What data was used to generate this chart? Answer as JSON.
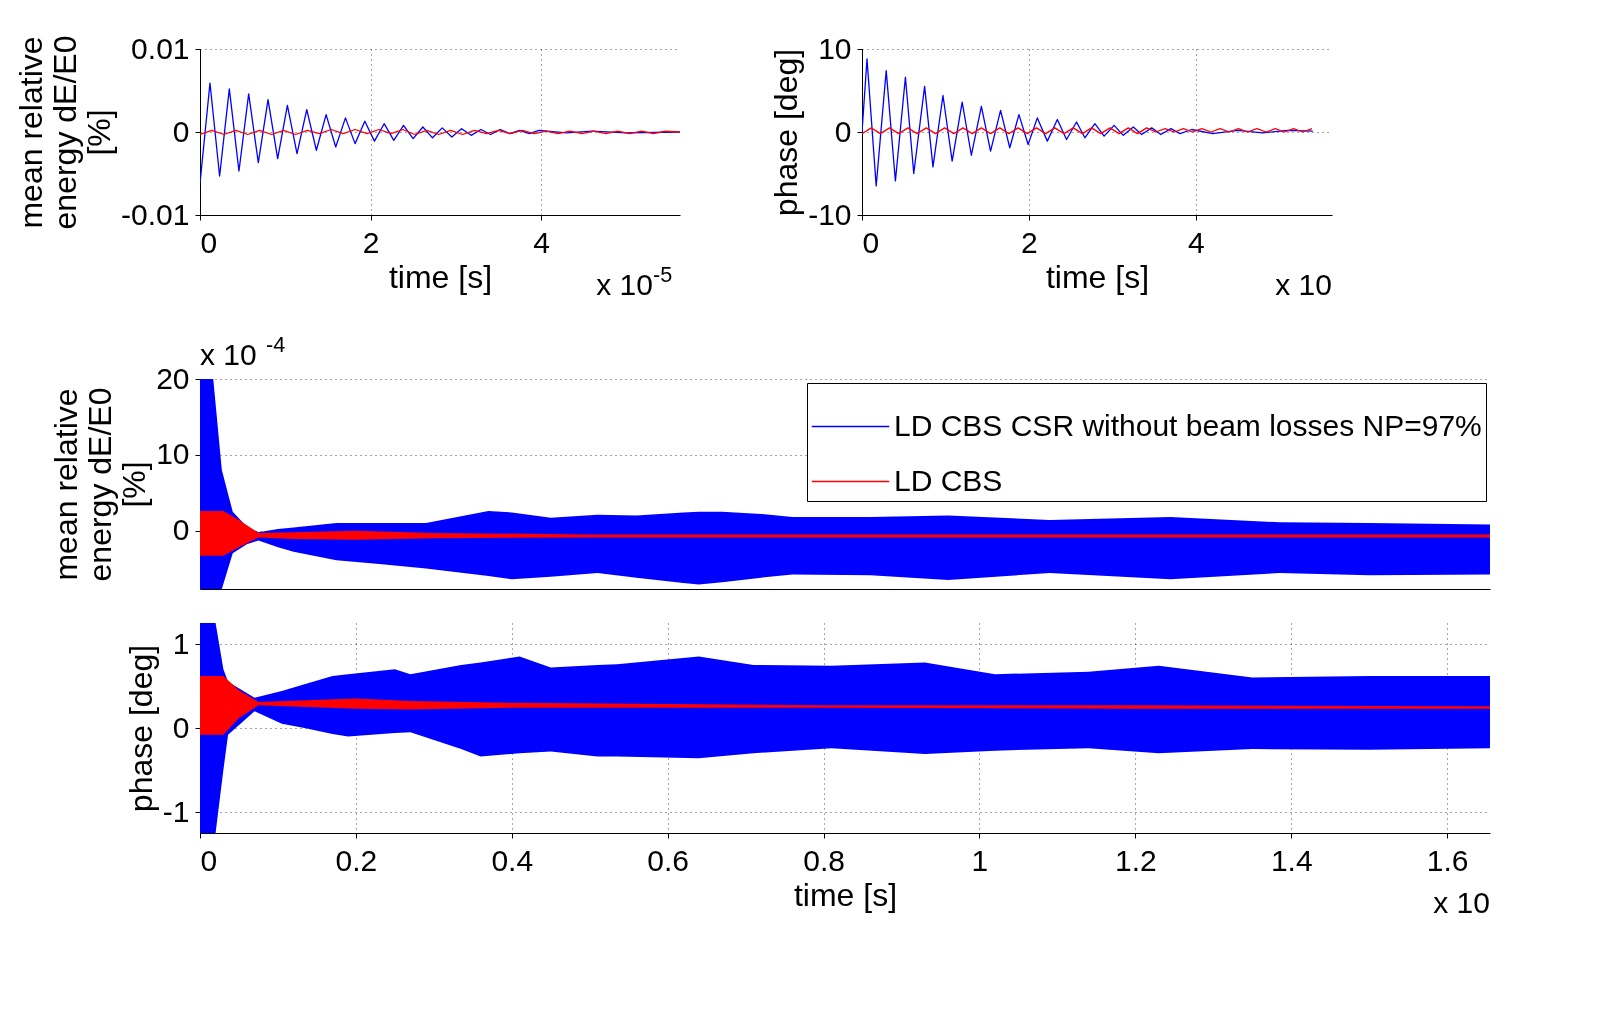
{
  "chart_data": [
    {
      "type": "line",
      "xlabel": "time [s]",
      "ylabel": "mean relative energy dE/E0 [%]",
      "xlim": [
        0,
        5.63
      ],
      "ylim": [
        -0.01,
        0.01
      ],
      "xticks": [
        0,
        2,
        4
      ],
      "yticks": [
        -0.01,
        0,
        0.01
      ],
      "grid": true,
      "annotations": [
        "x 10$^{-5}$"
      ],
      "series": [
        {
          "color": "#0000ff",
          "x": [
            0,
            0.117,
            0.23,
            0.344,
            0.457,
            0.571,
            0.684,
            0.798,
            0.911,
            1.025,
            1.138,
            1.252,
            1.365,
            1.479,
            1.592,
            1.706,
            1.819,
            1.933,
            2.046,
            2.16,
            2.273,
            2.387,
            2.5,
            2.614,
            2.727,
            2.841,
            2.954,
            3.068,
            3.181,
            3.295,
            3.408,
            3.522,
            3.635,
            3.749,
            3.862,
            3.976,
            4.3,
            4.6,
            5,
            5.63
          ],
          "values": [
            -0.0062,
            0.0059,
            -0.0053,
            0.0052,
            -0.0047,
            0.0046,
            -0.0037,
            0.0039,
            -0.0032,
            0.0032,
            -0.0026,
            0.0027,
            -0.0022,
            0.0021,
            -0.0018,
            0.0017,
            -0.0014,
            0.0013,
            -0.0011,
            0.001,
            -0.001,
            0.0008,
            -0.0008,
            0.0006,
            -0.0007,
            0.0005,
            -0.0006,
            0.0004,
            -0.0004,
            0.0003,
            -0.0003,
            0.0003,
            -0.0002,
            0.0002,
            -0.0002,
            0.0002,
            -0.0001,
            0.0001,
            -0.0001,
            0
          ]
        },
        {
          "color": "#ff0000",
          "x": [
            0,
            0.14,
            0.28,
            0.42,
            0.56,
            0.7,
            0.84,
            0.98,
            1.12,
            1.26,
            1.4,
            1.54,
            1.68,
            1.82,
            1.96,
            2.1,
            2.24,
            2.38,
            2.52,
            2.66,
            2.8,
            2.94,
            3.08,
            3.22,
            3.36,
            3.5,
            3.64,
            3.78,
            3.92,
            4.06,
            4.2,
            4.34,
            4.48,
            4.62,
            4.76,
            4.9,
            5.04,
            5.18,
            5.32,
            5.46,
            5.63
          ],
          "values": [
            -0.0003,
            0.0002,
            -0.0003,
            0.0002,
            -0.0003,
            0.0002,
            -0.0003,
            0.0002,
            -0.0003,
            0.0002,
            -0.0002,
            0.0003,
            -0.0002,
            0.0003,
            -0.0002,
            0.0003,
            -0.0002,
            0.0003,
            -0.0003,
            0.0002,
            -0.0003,
            0.0002,
            -0.0003,
            0.0002,
            -0.0002,
            0.0002,
            -0.0002,
            0.0002,
            -0.0002,
            0.0001,
            -0.0002,
            0.0001,
            -0.0002,
            0.0001,
            -0.0002,
            0.0001,
            -0.0002,
            0.0001,
            -0.0002,
            0.0001,
            0
          ]
        }
      ]
    },
    {
      "type": "line",
      "xlabel": "time [s]",
      "ylabel": "phase [deg]",
      "xlim": [
        0,
        5.63
      ],
      "ylim": [
        -10,
        10
      ],
      "xticks": [
        0,
        2,
        4
      ],
      "yticks": [
        -10,
        0,
        10
      ],
      "grid": true,
      "annotations": [
        "x 10"
      ],
      "series": [
        {
          "color": "#0000ff",
          "x": [
            0,
            0.06,
            0.17,
            0.29,
            0.4,
            0.52,
            0.62,
            0.75,
            0.85,
            0.97,
            1.08,
            1.2,
            1.31,
            1.43,
            1.54,
            1.66,
            1.77,
            1.88,
            1.99,
            2.1,
            2.22,
            2.34,
            2.45,
            2.57,
            2.67,
            2.79,
            2.9,
            3.02,
            3.13,
            3.25,
            3.35,
            3.47,
            3.58,
            3.7,
            3.81,
            3.95,
            4.2,
            4.5,
            4.8,
            5.1,
            5.4
          ],
          "values": [
            0,
            8.8,
            -6.5,
            7.4,
            -5.9,
            6.6,
            -5,
            5.5,
            -4.2,
            4.4,
            -3.5,
            3.6,
            -2.8,
            3.1,
            -2.3,
            2.6,
            -1.9,
            2.1,
            -1.5,
            1.7,
            -1.1,
            1.5,
            -0.9,
            1.2,
            -0.7,
            1,
            -0.5,
            0.8,
            -0.4,
            0.6,
            -0.3,
            0.5,
            -0.3,
            0.4,
            -0.2,
            0.3,
            -0.2,
            0.2,
            -0.1,
            0.2,
            0.1
          ]
        },
        {
          "color": "#ff0000",
          "x": [
            0,
            0.11,
            0.22,
            0.33,
            0.44,
            0.55,
            0.66,
            0.77,
            0.88,
            0.99,
            1.1,
            1.21,
            1.32,
            1.43,
            1.54,
            1.65,
            1.76,
            1.87,
            1.98,
            2.09,
            2.2,
            2.31,
            2.42,
            2.53,
            2.64,
            2.75,
            2.86,
            2.97,
            3.08,
            3.19,
            3.3,
            3.41,
            3.52,
            3.63,
            3.74,
            3.85,
            3.96,
            4.07,
            4.18,
            4.29,
            4.4,
            4.51,
            4.62,
            4.73,
            4.84,
            4.95,
            5.06,
            5.17,
            5.28,
            5.39
          ],
          "values": [
            -0.2,
            0.5,
            -0.2,
            0.5,
            -0.2,
            0.5,
            -0.2,
            0.5,
            -0.2,
            0.5,
            -0.2,
            0.5,
            -0.2,
            0.5,
            -0.2,
            0.5,
            -0.2,
            0.5,
            -0.2,
            0.5,
            -0.2,
            0.5,
            -0.2,
            0.5,
            -0.2,
            0.5,
            -0.2,
            0.5,
            -0.2,
            0.5,
            -0.2,
            0.5,
            0,
            0.4,
            0,
            0.4,
            0,
            0.4,
            0,
            0.4,
            0,
            0.4,
            0,
            0.4,
            0,
            0.4,
            0,
            0.4,
            0,
            0.4
          ]
        }
      ]
    },
    {
      "type": "line",
      "ylabel": "mean relative energy dE/E0 [%]",
      "xlim": [
        0,
        1.655
      ],
      "ylim": [
        -7.7,
        20
      ],
      "yticks": [
        0,
        10,
        20
      ],
      "grid": "y",
      "tick_labels": "y",
      "legend": "top right",
      "annotations": [
        "x 10$^{-4}$"
      ],
      "series": [
        {
          "name": "LD CBS CSR without beam losses NP=97%",
          "color": "#0000ff",
          "x": [
            0,
            0.017,
            0.028,
            0.042,
            0.06,
            0.075,
            0.1,
            0.12,
            0.175,
            0.23,
            0.29,
            0.33,
            0.37,
            0.4,
            0.45,
            0.51,
            0.56,
            0.62,
            0.64,
            0.67,
            0.72,
            0.76,
            0.86,
            0.96,
            1.09,
            1.245,
            1.385,
            1.5,
            1.655
          ],
          "values": [
            null,
            null,
            null,
            null,
            null,
            null,
            null,
            null,
            null,
            null,
            null,
            null,
            null,
            null,
            null,
            null,
            null,
            null,
            null,
            null,
            null,
            null,
            null,
            null,
            null,
            null,
            null,
            null,
            null
          ],
          "lower": [
            -7.7,
            -7.7,
            -7.7,
            -3,
            -1.8,
            -1.3,
            -2.2,
            -2.8,
            -3.9,
            -4.4,
            -5,
            -5.5,
            -6,
            -6.4,
            -6.1,
            -5.6,
            -6.2,
            -6.9,
            -7.1,
            -6.8,
            -6.2,
            -5.8,
            -5.9,
            -6.5,
            -5.6,
            -6.4,
            -5.6,
            -5.9,
            -5.8
          ],
          "upper": [
            20,
            20,
            8,
            2.5,
            0.5,
            -0.2,
            0.2,
            0.4,
            1,
            1,
            1,
            1.8,
            2.6,
            2.4,
            1.7,
            2.1,
            2,
            2.4,
            2.5,
            2.5,
            2.2,
            1.8,
            1.8,
            2,
            1.4,
            1.8,
            1.1,
            1,
            0.8
          ]
        },
        {
          "name": "LD CBS",
          "color": "#ff0000",
          "x": [
            0,
            0.03,
            0.05,
            0.075,
            0.12,
            0.2,
            0.3,
            0.5,
            0.8,
            1.2,
            1.655
          ],
          "values": [
            null,
            null,
            null,
            null,
            null,
            null,
            null,
            null,
            null,
            null,
            null
          ],
          "lower": [
            -3.3,
            -3.3,
            -2.2,
            -0.9,
            -1.1,
            -1.2,
            -1,
            -0.9,
            -0.9,
            -0.9,
            -0.9
          ],
          "upper": [
            2.6,
            2.6,
            1.4,
            -0.3,
            -0.2,
            0,
            -0.3,
            -0.5,
            -0.5,
            -0.5,
            -0.5
          ]
        }
      ]
    },
    {
      "type": "line",
      "xlabel": "time [s]",
      "ylabel": "phase [deg]",
      "xlim": [
        0,
        1.655
      ],
      "ylim": [
        -1.25,
        1.25
      ],
      "xticks": [
        0,
        0.2,
        0.4,
        0.6,
        0.8,
        1,
        1.2,
        1.4,
        1.6
      ],
      "yticks": [
        -1,
        0,
        1
      ],
      "grid": true,
      "annotations": [
        "x 10"
      ],
      "series": [
        {
          "color": "#0000ff",
          "x": [
            0,
            0.02,
            0.03,
            0.036,
            0.07,
            0.105,
            0.134,
            0.17,
            0.19,
            0.25,
            0.27,
            0.335,
            0.36,
            0.41,
            0.45,
            0.51,
            0.535,
            0.64,
            0.71,
            0.81,
            0.93,
            1.02,
            1.14,
            1.23,
            1.35,
            1.5,
            1.655
          ],
          "values": [
            null,
            null,
            null,
            null,
            null,
            null,
            null,
            null,
            null,
            null,
            null,
            null,
            null,
            null,
            null,
            null,
            null,
            null,
            null,
            null,
            null,
            null,
            null,
            null,
            null,
            null,
            null
          ],
          "lower": [
            -1.25,
            -1.25,
            -0.5,
            -0.08,
            0.2,
            0.05,
            0,
            -0.07,
            -0.1,
            -0.06,
            -0.05,
            -0.25,
            -0.34,
            -0.3,
            -0.28,
            -0.34,
            -0.34,
            -0.36,
            -0.3,
            -0.24,
            -0.31,
            -0.27,
            -0.24,
            -0.3,
            -0.25,
            -0.26,
            -0.24
          ],
          "upper": [
            1.25,
            1.25,
            0.7,
            0.55,
            0.36,
            0.44,
            0.52,
            0.62,
            0.64,
            0.7,
            0.64,
            0.75,
            0.78,
            0.85,
            0.72,
            0.75,
            0.76,
            0.85,
            0.75,
            0.74,
            0.78,
            0.64,
            0.67,
            0.74,
            0.6,
            0.62,
            0.62
          ]
        },
        {
          "color": "#ff0000",
          "x": [
            0,
            0.03,
            0.05,
            0.075,
            0.2,
            0.27,
            0.4,
            0.8,
            1.2,
            1.655
          ],
          "values": [
            null,
            null,
            null,
            null,
            null,
            null,
            null,
            null,
            null,
            null
          ],
          "lower": [
            -0.08,
            -0.08,
            0.12,
            0.27,
            0.23,
            0.22,
            0.24,
            0.24,
            0.23,
            0.23
          ],
          "upper": [
            0.62,
            0.62,
            0.45,
            0.31,
            0.35,
            0.32,
            0.3,
            0.27,
            0.27,
            0.26
          ]
        }
      ]
    }
  ]
}
